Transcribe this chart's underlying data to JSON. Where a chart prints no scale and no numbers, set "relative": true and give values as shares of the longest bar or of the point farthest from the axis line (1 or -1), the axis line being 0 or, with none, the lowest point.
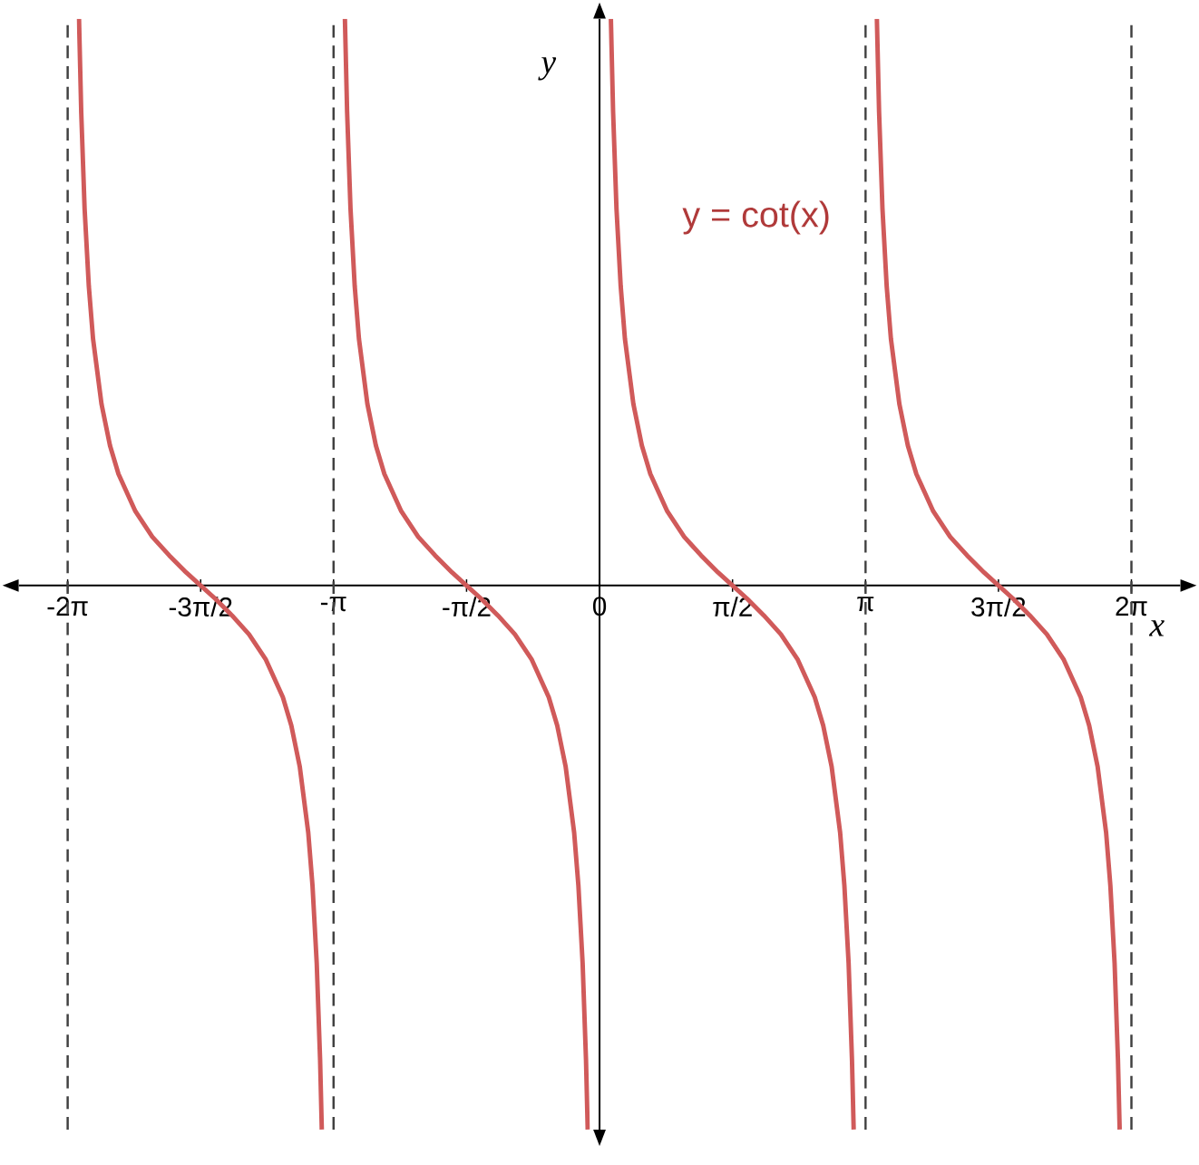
{
  "chart_data": {
    "type": "line",
    "relative": true,
    "xlabel": "x",
    "ylabel": "y",
    "xlim": [
      -6.86,
      6.86
    ],
    "xticks": [
      {
        "value": -6.283,
        "label": "-2π"
      },
      {
        "value": -4.712,
        "label": "-3π/2"
      },
      {
        "value": -3.142,
        "label": "-π"
      },
      {
        "value": -1.571,
        "label": "-π/2"
      },
      {
        "value": 0,
        "label": "0"
      },
      {
        "value": 1.571,
        "label": "π/2"
      },
      {
        "value": 3.142,
        "label": "π"
      },
      {
        "value": 4.712,
        "label": "3π/2"
      },
      {
        "value": 6.283,
        "label": "2π"
      }
    ],
    "grid": false,
    "marker": "none",
    "line_style": "solid",
    "ref_lines": [
      {
        "axis": "x",
        "value": -6.283,
        "color": "#404040",
        "line_style": "dashed"
      },
      {
        "axis": "x",
        "value": -3.142,
        "color": "#404040",
        "line_style": "dashed"
      },
      {
        "axis": "x",
        "value": 3.142,
        "color": "#404040",
        "line_style": "dashed"
      },
      {
        "axis": "x",
        "value": 6.283,
        "color": "#404040",
        "line_style": "dashed"
      }
    ],
    "series": [
      {
        "color": "#d05a5a",
        "x": [
          -6.149,
          -6.123,
          -6.083,
          -6.033,
          -5.983,
          -5.883,
          -5.783,
          -5.683,
          -5.483,
          -5.283,
          -5.083,
          -4.883,
          -4.712,
          -4.541,
          -4.341,
          -4.141,
          -3.941,
          -3.741,
          -3.641,
          -3.541,
          -3.441,
          -3.391,
          -3.341,
          -3.301,
          -3.281
        ],
        "values": [
          1.0,
          0.836,
          0.665,
          0.528,
          0.435,
          0.32,
          0.247,
          0.197,
          0.131,
          0.086,
          0.053,
          0.023,
          0,
          -0.023,
          -0.053,
          -0.086,
          -0.131,
          -0.197,
          -0.247,
          -0.32,
          -0.436,
          -0.529,
          -0.666,
          -0.837,
          -0.96
        ]
      },
      {
        "color": "#d05a5a",
        "x": [
          -3.008,
          -2.982,
          -2.942,
          -2.892,
          -2.842,
          -2.742,
          -2.642,
          -2.542,
          -2.342,
          -2.142,
          -1.942,
          -1.742,
          -1.571,
          -1.4,
          -1.2,
          -1.0,
          -0.8,
          -0.6,
          -0.5,
          -0.4,
          -0.3,
          -0.25,
          -0.2,
          -0.16,
          -0.14
        ],
        "values": [
          1.0,
          0.836,
          0.665,
          0.528,
          0.435,
          0.32,
          0.247,
          0.197,
          0.131,
          0.086,
          0.053,
          0.023,
          0,
          -0.023,
          -0.053,
          -0.086,
          -0.131,
          -0.197,
          -0.247,
          -0.32,
          -0.436,
          -0.529,
          -0.666,
          -0.837,
          -0.96
        ]
      },
      {
        "name": "y = cot(x)",
        "color": "#d05a5a",
        "x": [
          0.134,
          0.16,
          0.2,
          0.25,
          0.3,
          0.4,
          0.5,
          0.6,
          0.8,
          1.0,
          1.2,
          1.4,
          1.571,
          1.742,
          1.942,
          2.142,
          2.342,
          2.542,
          2.642,
          2.742,
          2.842,
          2.892,
          2.942,
          2.982,
          3.002
        ],
        "values": [
          1.0,
          0.836,
          0.665,
          0.528,
          0.435,
          0.32,
          0.247,
          0.197,
          0.131,
          0.086,
          0.053,
          0.023,
          0,
          -0.023,
          -0.053,
          -0.086,
          -0.131,
          -0.197,
          -0.247,
          -0.32,
          -0.436,
          -0.529,
          -0.666,
          -0.837,
          -0.96
        ]
      },
      {
        "color": "#d05a5a",
        "x": [
          3.276,
          3.302,
          3.342,
          3.392,
          3.442,
          3.542,
          3.642,
          3.742,
          3.942,
          4.142,
          4.342,
          4.542,
          4.713,
          4.884,
          5.084,
          5.284,
          5.484,
          5.684,
          5.784,
          5.884,
          5.984,
          6.034,
          6.084,
          6.124,
          6.144
        ],
        "values": [
          1.0,
          0.836,
          0.665,
          0.528,
          0.435,
          0.32,
          0.247,
          0.197,
          0.131,
          0.086,
          0.053,
          0.023,
          0,
          -0.023,
          -0.053,
          -0.086,
          -0.131,
          -0.197,
          -0.247,
          -0.32,
          -0.436,
          -0.529,
          -0.666,
          -0.837,
          -0.96
        ]
      }
    ]
  }
}
